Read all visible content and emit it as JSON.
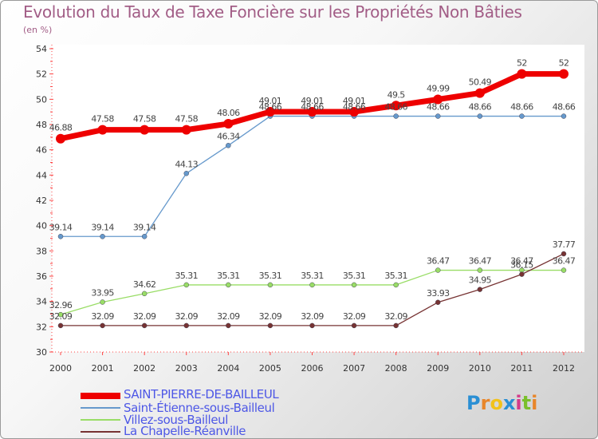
{
  "title": "Evolution du Taux de Taxe Foncière sur les Propriétés Non Bâties",
  "subtitle": "(en %)",
  "logo": {
    "letters": [
      "P",
      "r",
      "o",
      "x",
      "i",
      "t",
      "i"
    ],
    "colors": [
      "#2a8fd4",
      "#e8862a",
      "#f2c21a",
      "#2a8fd4",
      "#d43a8a",
      "#7abf2a",
      "#e8862a"
    ]
  },
  "chart_data": {
    "type": "line",
    "title": "Evolution du Taux de Taxe Foncière sur les Propriétés Non Bâties",
    "ylabel": "(en %)",
    "xlabel": "",
    "ylim": [
      30,
      54
    ],
    "yticks": [
      30,
      32,
      34,
      36,
      38,
      40,
      42,
      44,
      46,
      48,
      50,
      52,
      54
    ],
    "x": [
      "2000",
      "2001",
      "2002",
      "2003",
      "2004",
      "2005",
      "2006",
      "2007",
      "2008",
      "2009",
      "2010",
      "2011",
      "2012"
    ],
    "grid": false,
    "series": [
      {
        "name": "SAINT-PIERRE-DE-BAILLEUL",
        "color": "#ee0000",
        "values": [
          46.88,
          47.58,
          47.58,
          47.58,
          48.06,
          49.01,
          49.01,
          49.01,
          49.5,
          49.99,
          50.49,
          52,
          52
        ],
        "labels": [
          "46.88",
          "47.58",
          "47.58",
          "47.58",
          "48.06",
          "49.01",
          "49.01",
          "49.01",
          "49.5",
          "49.99",
          "50.49",
          "52",
          "52"
        ]
      },
      {
        "name": "Saint-Étienne-sous-Bailleul",
        "color": "#6699cc",
        "values": [
          39.14,
          39.14,
          39.14,
          44.13,
          46.34,
          48.66,
          48.66,
          48.66,
          48.66,
          48.66,
          48.66,
          48.66,
          48.66
        ],
        "labels": [
          "39.14",
          "39.14",
          "39.14",
          "44.13",
          "46.34",
          "48.66",
          "48.66",
          "48.66",
          "48.66",
          "48.66",
          "48.66",
          "48.66",
          "48.66"
        ]
      },
      {
        "name": "Villez-sous-Bailleul",
        "color": "#99dd66",
        "values": [
          32.96,
          33.95,
          34.62,
          35.31,
          35.31,
          35.31,
          35.31,
          35.31,
          35.31,
          36.47,
          36.47,
          36.47,
          36.47
        ],
        "labels": [
          "32.96",
          "33.95",
          "34.62",
          "35.31",
          "35.31",
          "35.31",
          "35.31",
          "35.31",
          "35.31",
          "36.47",
          "36.47",
          "36.47",
          "36.47"
        ]
      },
      {
        "name": "La Chapelle-Réanville",
        "color": "#773333",
        "values": [
          32.09,
          32.09,
          32.09,
          32.09,
          32.09,
          32.09,
          32.09,
          32.09,
          32.09,
          33.93,
          34.95,
          36.15,
          37.77
        ],
        "labels": [
          "32.09",
          "32.09",
          "32.09",
          "32.09",
          "32.09",
          "32.09",
          "32.09",
          "32.09",
          "32.09",
          "33.93",
          "34.95",
          "36.15",
          "37.77"
        ]
      }
    ],
    "legend": "bottom-left"
  }
}
